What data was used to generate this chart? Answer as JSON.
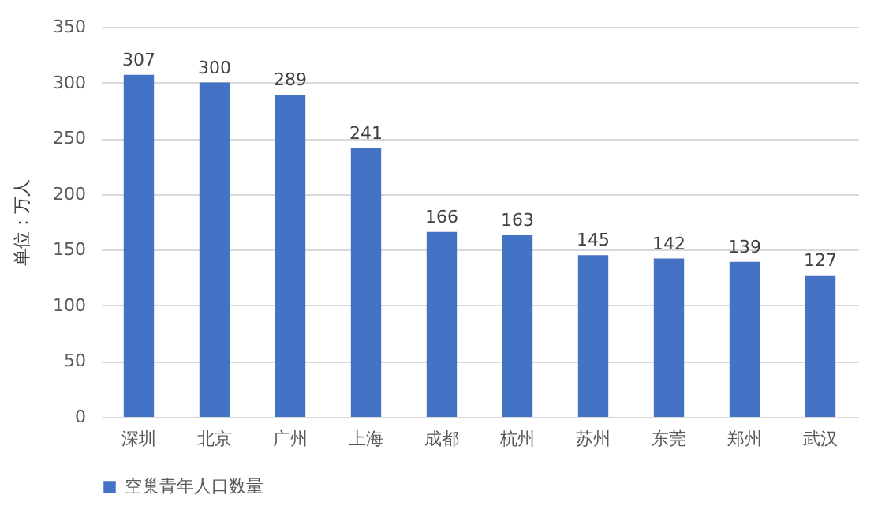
{
  "chart_data": {
    "type": "bar",
    "ylabel": "单位：万人",
    "categories": [
      "深圳",
      "北京",
      "广州",
      "上海",
      "成都",
      "杭州",
      "苏州",
      "东莞",
      "郑州",
      "武汉"
    ],
    "series": [
      {
        "name": "空巢青年人口数量",
        "color": "#4472c4",
        "values": [
          307,
          300,
          289,
          241,
          166,
          163,
          145,
          142,
          139,
          127
        ]
      }
    ],
    "ylim": [
      0,
      350
    ],
    "yticks": [
      0,
      50,
      100,
      150,
      200,
      250,
      300,
      350
    ],
    "grid": "y",
    "legend": "bottom",
    "data_labels": true
  }
}
